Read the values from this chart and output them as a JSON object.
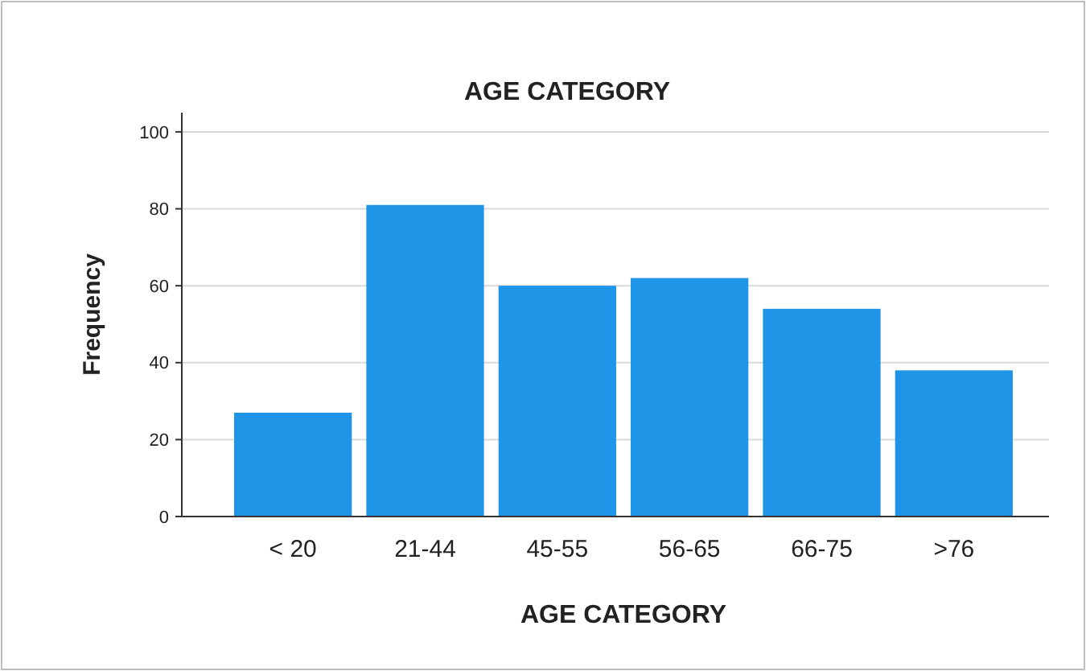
{
  "chart_data": {
    "type": "bar",
    "title": "AGE CATEGORY",
    "xlabel": "AGE CATEGORY",
    "ylabel": "Frequency",
    "categories": [
      "< 20",
      "21-44",
      "45-55",
      "56-65",
      "66-75",
      ">76"
    ],
    "values": [
      27,
      81,
      60,
      62,
      54,
      38
    ],
    "color": "#1f95e8",
    "ylim": [
      0,
      105
    ],
    "yticks": [
      0,
      20,
      40,
      60,
      80,
      100
    ],
    "grid": "y"
  }
}
